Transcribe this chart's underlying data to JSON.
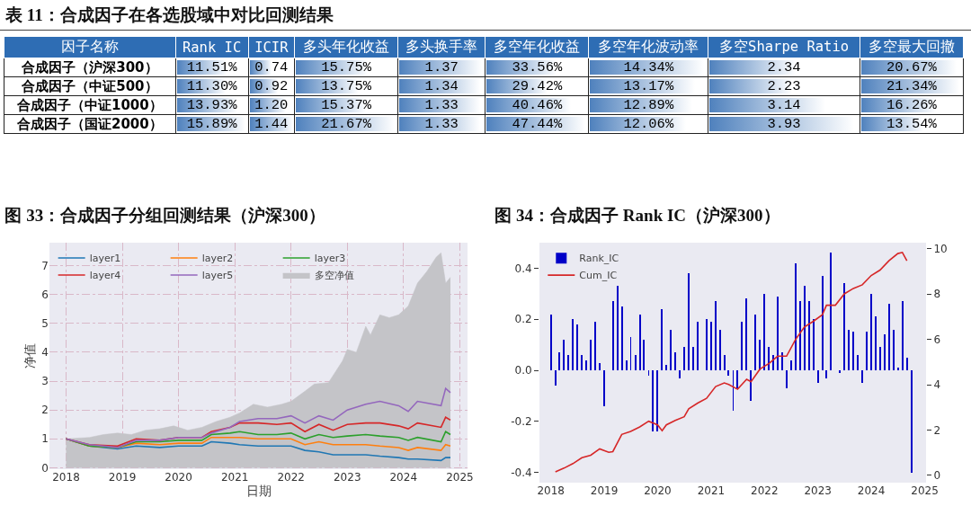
{
  "chart_data": [
    {
      "type": "heatmap",
      "title": "表 11：合成因子在各选股域中对比回测结果",
      "ylabel": "因子名称",
      "color": "#4f81bd",
      "categories": [
        "Rank IC",
        "ICIR",
        "多头年化收益",
        "多头换手率",
        "多空年化收益",
        "多空年化波动率",
        "多空Sharpe Ratio",
        "多空最大回撤"
      ],
      "y_categories": [
        "合成因子（沪深300）",
        "合成因子（中证500）",
        "合成因子（中证1000）",
        "合成因子（国证2000）"
      ],
      "cells": [
        [
          11.51,
          0.74,
          15.75,
          1.37,
          33.56,
          14.34,
          2.34,
          20.67
        ],
        [
          11.3,
          0.92,
          13.75,
          1.34,
          29.42,
          13.17,
          2.23,
          21.34
        ],
        [
          13.93,
          1.2,
          15.37,
          1.33,
          40.46,
          12.89,
          3.14,
          16.26
        ],
        [
          15.89,
          1.44,
          21.67,
          1.33,
          47.44,
          12.06,
          3.93,
          13.54
        ]
      ],
      "cell_labels": [
        [
          "11.51%",
          "0.74",
          "15.75%",
          "1.37",
          "33.56%",
          "14.34%",
          "2.34",
          "20.67%"
        ],
        [
          "11.30%",
          "0.92",
          "13.75%",
          "1.34",
          "29.42%",
          "13.17%",
          "2.23",
          "21.34%"
        ],
        [
          "13.93%",
          "1.20",
          "15.37%",
          "1.33",
          "40.46%",
          "12.89%",
          "3.14",
          "16.26%"
        ],
        [
          "15.89%",
          "1.44",
          "21.67%",
          "1.33",
          "47.44%",
          "12.06%",
          "3.93",
          "13.54%"
        ]
      ]
    },
    {
      "type": "line",
      "title": "图 33：合成因子分组回测结果（沪深300）",
      "xlabel": "日期",
      "ylabel": "净值",
      "legend": "top left",
      "grid": true,
      "xlim": [
        "2017-09-15",
        "2025-02-20"
      ],
      "ylim": [
        -0.05,
        7.8
      ],
      "xticks": [
        "2018",
        "2019",
        "2020",
        "2021",
        "2022",
        "2023",
        "2024",
        "2025"
      ],
      "yticks": [
        0,
        1,
        2,
        3,
        4,
        5,
        6,
        7
      ],
      "x": [
        "2018-01",
        "2018-06",
        "2018-12",
        "2019-04",
        "2019-09",
        "2020-01",
        "2020-06",
        "2020-08",
        "2020-12",
        "2021-02",
        "2021-06",
        "2021-10",
        "2022-01",
        "2022-04",
        "2022-07",
        "2022-10",
        "2023-01",
        "2023-05",
        "2023-08",
        "2023-12",
        "2024-02",
        "2024-04",
        "2024-09",
        "2024-10",
        "2024-11"
      ],
      "series": [
        {
          "name": "layer1",
          "color": "#1f77b4",
          "values": [
            1.0,
            0.75,
            0.65,
            0.75,
            0.7,
            0.75,
            0.75,
            0.9,
            0.85,
            0.8,
            0.75,
            0.75,
            0.75,
            0.6,
            0.55,
            0.45,
            0.45,
            0.45,
            0.4,
            0.35,
            0.3,
            0.3,
            0.25,
            0.35,
            0.35
          ]
        },
        {
          "name": "layer2",
          "color": "#ff7f0e",
          "values": [
            1.0,
            0.75,
            0.7,
            0.85,
            0.8,
            0.85,
            0.85,
            1.05,
            1.05,
            1.05,
            1.0,
            1.0,
            1.0,
            0.8,
            0.9,
            0.8,
            0.8,
            0.8,
            0.75,
            0.7,
            0.6,
            0.7,
            0.6,
            0.8,
            0.75
          ]
        },
        {
          "name": "layer3",
          "color": "#2ca02c",
          "values": [
            1.0,
            0.75,
            0.7,
            0.9,
            0.9,
            0.95,
            0.95,
            1.15,
            1.2,
            1.25,
            1.15,
            1.15,
            1.2,
            1.0,
            1.15,
            1.05,
            1.1,
            1.15,
            1.1,
            1.05,
            0.95,
            1.05,
            0.9,
            1.25,
            1.15
          ]
        },
        {
          "name": "layer4",
          "color": "#d62728",
          "values": [
            1.0,
            0.8,
            0.75,
            1.0,
            0.95,
            1.05,
            1.05,
            1.25,
            1.4,
            1.55,
            1.55,
            1.5,
            1.55,
            1.25,
            1.5,
            1.3,
            1.5,
            1.55,
            1.55,
            1.45,
            1.35,
            1.55,
            1.4,
            1.75,
            1.65
          ]
        },
        {
          "name": "layer5",
          "color": "#9467bd",
          "values": [
            1.0,
            0.8,
            0.7,
            0.95,
            0.95,
            1.05,
            1.05,
            1.2,
            1.4,
            1.6,
            1.7,
            1.7,
            1.8,
            1.55,
            1.8,
            1.65,
            2.0,
            2.2,
            2.3,
            2.15,
            1.95,
            2.3,
            2.15,
            2.75,
            2.6
          ]
        },
        {
          "name": "多空净值",
          "type": "area",
          "color": "#c4c4c8",
          "x": [
            "2018-01",
            "2018-06",
            "2018-09",
            "2018-12",
            "2019-03",
            "2019-06",
            "2019-09",
            "2019-12",
            "2020-03",
            "2020-06",
            "2020-09",
            "2020-12",
            "2021-02",
            "2021-05",
            "2021-08",
            "2021-11",
            "2022-01",
            "2022-04",
            "2022-06",
            "2022-09",
            "2022-12",
            "2023-01",
            "2023-03",
            "2023-05",
            "2023-06",
            "2023-08",
            "2023-10",
            "2023-12",
            "2024-02",
            "2024-04",
            "2024-06",
            "2024-08",
            "2024-09",
            "2024-10",
            "2024-11"
          ],
          "values": [
            1.0,
            1.05,
            1.15,
            1.2,
            1.15,
            1.3,
            1.35,
            1.45,
            1.3,
            1.4,
            1.6,
            1.75,
            1.9,
            2.2,
            2.1,
            2.2,
            2.3,
            2.65,
            2.9,
            2.95,
            3.7,
            4.1,
            4.0,
            4.9,
            4.6,
            5.3,
            5.2,
            5.3,
            5.6,
            6.4,
            6.8,
            7.3,
            7.45,
            6.4,
            6.6
          ]
        }
      ]
    },
    {
      "type": "bar",
      "title": "图 34：合成因子 Rank IC（沪深300）",
      "legend": "top left",
      "xlim": [
        "2017-10-15",
        "2025-01-10"
      ],
      "ylim": [
        -0.44,
        0.5
      ],
      "y2lim": [
        -0.32,
        10.27
      ],
      "xticks": [
        "2018",
        "2019",
        "2020",
        "2021",
        "2022",
        "2023",
        "2024",
        "2025"
      ],
      "yticks": [
        -0.4,
        -0.2,
        {
          "value": 0,
          "label": "0.0"
        },
        0.2,
        0.4
      ],
      "y2ticks": [
        0,
        2,
        4,
        6,
        8,
        10
      ],
      "x": [
        "2018-01",
        "2018-02",
        "2018-03",
        "2018-04",
        "2018-05",
        "2018-06",
        "2018-07",
        "2018-08",
        "2018-09",
        "2018-10",
        "2018-11",
        "2018-12",
        "2019-01",
        "2019-02",
        "2019-03",
        "2019-04",
        "2019-05",
        "2019-06",
        "2019-07",
        "2019-08",
        "2019-09",
        "2019-10",
        "2019-11",
        "2019-12",
        "2020-01",
        "2020-02",
        "2020-03",
        "2020-04",
        "2020-05",
        "2020-06",
        "2020-07",
        "2020-08",
        "2020-09",
        "2020-10",
        "2020-11",
        "2020-12",
        "2021-01",
        "2021-02",
        "2021-03",
        "2021-04",
        "2021-05",
        "2021-06",
        "2021-07",
        "2021-08",
        "2021-09",
        "2021-10",
        "2021-11",
        "2021-12",
        "2022-01",
        "2022-02",
        "2022-03",
        "2022-04",
        "2022-05",
        "2022-06",
        "2022-07",
        "2022-08",
        "2022-09",
        "2022-10",
        "2022-11",
        "2022-12",
        "2023-01",
        "2023-02",
        "2023-03",
        "2023-04",
        "2023-05",
        "2023-06",
        "2023-07",
        "2023-08",
        "2023-09",
        "2023-10",
        "2023-11",
        "2023-12",
        "2024-01",
        "2024-02",
        "2024-03",
        "2024-04",
        "2024-05",
        "2024-06",
        "2024-07",
        "2024-08",
        "2024-09",
        "2024-10"
      ],
      "series": [
        {
          "name": "Rank_IC",
          "color": "#0000c8",
          "values": [
            0.22,
            -0.06,
            0.07,
            0.12,
            0.06,
            0.2,
            0.18,
            0.06,
            0.04,
            0.12,
            0.19,
            0.03,
            -0.14,
            0.0,
            0.27,
            0.33,
            0.25,
            0.04,
            0.13,
            0.06,
            0.22,
            0.12,
            -0.02,
            -0.24,
            -0.24,
            0.24,
            0.02,
            0.16,
            0.07,
            -0.03,
            0.09,
            0.38,
            0.09,
            0.19,
            0.0,
            0.2,
            0.19,
            0.27,
            0.16,
            0.06,
            -0.02,
            -0.16,
            -0.07,
            0.19,
            0.28,
            -0.12,
            0.22,
            0.12,
            0.3,
            0.09,
            0.06,
            0.29,
            0.07,
            -0.07,
            0.04,
            0.42,
            0.27,
            0.33,
            0.27,
            0.2,
            -0.05,
            0.37,
            -0.03,
            0.46,
            0.0,
            -0.01,
            0.34,
            0.16,
            0.15,
            0.06,
            -0.05,
            0.15,
            0.3,
            0.21,
            0.09,
            0.14,
            0.26,
            0.16,
            0.01,
            0.27,
            0.05,
            -0.4
          ]
        },
        {
          "name": "Cum_IC",
          "type": "line",
          "axis": "y2",
          "color": "#d62728",
          "x": [
            "2018-02",
            "2018-04",
            "2018-06",
            "2018-08",
            "2018-10",
            "2018-12",
            "2019-02",
            "2019-03",
            "2019-05",
            "2019-07",
            "2019-09",
            "2019-11",
            "2020-01",
            "2020-02",
            "2020-03",
            "2020-05",
            "2020-07",
            "2020-08",
            "2020-10",
            "2020-12",
            "2021-02",
            "2021-04",
            "2021-05",
            "2021-07",
            "2021-09",
            "2021-10",
            "2021-12",
            "2022-02",
            "2022-04",
            "2022-06",
            "2022-08",
            "2022-10",
            "2022-12",
            "2023-02",
            "2023-03",
            "2023-05",
            "2023-07",
            "2023-09",
            "2023-11",
            "2024-01",
            "2024-03",
            "2024-05",
            "2024-07",
            "2024-08",
            "2024-09"
          ],
          "values": [
            0.16,
            0.32,
            0.52,
            0.78,
            0.89,
            1.17,
            1.02,
            1.05,
            1.81,
            1.94,
            2.14,
            2.39,
            2.23,
            1.97,
            2.23,
            2.43,
            2.59,
            2.94,
            3.19,
            3.4,
            3.92,
            4.08,
            4.01,
            3.8,
            4.24,
            4.13,
            4.69,
            4.94,
            5.26,
            5.26,
            5.99,
            6.55,
            6.8,
            7.09,
            7.51,
            7.51,
            8.01,
            8.25,
            8.41,
            8.82,
            9.06,
            9.47,
            9.79,
            9.84,
            9.47
          ]
        }
      ]
    }
  ]
}
